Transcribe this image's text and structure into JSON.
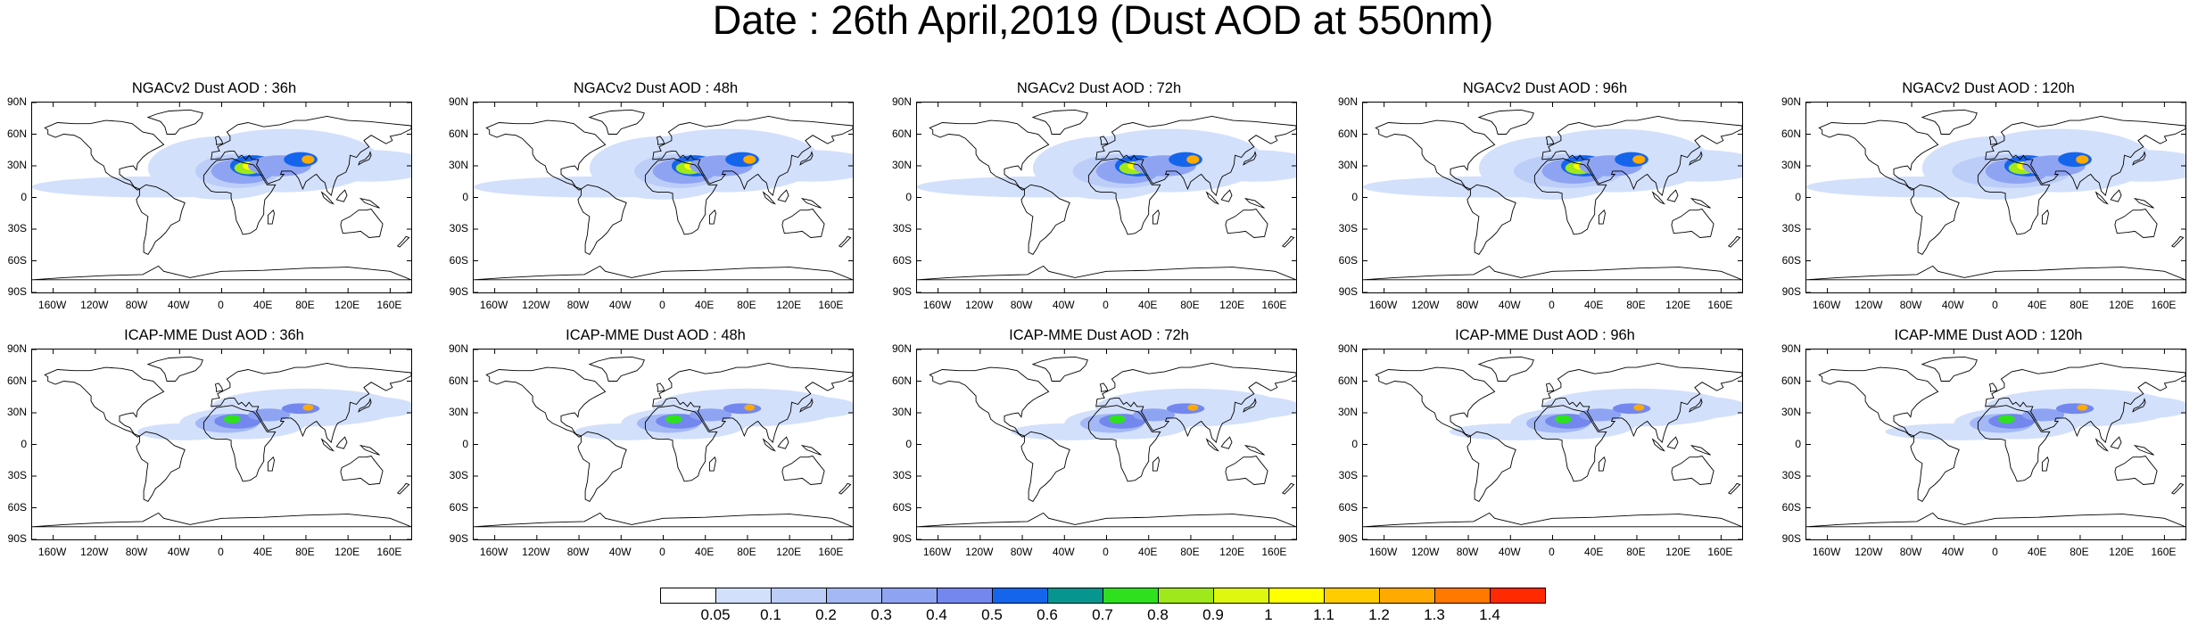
{
  "figure": {
    "title": "Date : 26th April,2019 (Dust AOD at 550nm)"
  },
  "lat_ticks": [
    "90N",
    "60N",
    "30N",
    "0",
    "30S",
    "60S",
    "90S"
  ],
  "lon_ticks": [
    "160W",
    "120W",
    "80W",
    "40W",
    "0",
    "40E",
    "80E",
    "120E",
    "160E"
  ],
  "lat_values": [
    90,
    60,
    30,
    0,
    -30,
    -60,
    -90
  ],
  "lon_values": [
    -160,
    -120,
    -80,
    -40,
    0,
    40,
    80,
    120,
    160
  ],
  "panels": [
    {
      "title": "NGACv2 Dust AOD : 36h",
      "model": "NGACv2",
      "lead_hours": 36
    },
    {
      "title": "NGACv2 Dust AOD : 48h",
      "model": "NGACv2",
      "lead_hours": 48
    },
    {
      "title": "NGACv2 Dust AOD : 72h",
      "model": "NGACv2",
      "lead_hours": 72
    },
    {
      "title": "NGACv2 Dust AOD : 96h",
      "model": "NGACv2",
      "lead_hours": 96
    },
    {
      "title": "NGACv2 Dust AOD : 120h",
      "model": "NGACv2",
      "lead_hours": 120
    },
    {
      "title": "ICAP-MME Dust AOD : 36h",
      "model": "ICAP-MME",
      "lead_hours": 36
    },
    {
      "title": "ICAP-MME Dust AOD : 48h",
      "model": "ICAP-MME",
      "lead_hours": 48
    },
    {
      "title": "ICAP-MME Dust AOD : 72h",
      "model": "ICAP-MME",
      "lead_hours": 72
    },
    {
      "title": "ICAP-MME Dust AOD : 96h",
      "model": "ICAP-MME",
      "lead_hours": 96
    },
    {
      "title": "ICAP-MME Dust AOD : 120h",
      "model": "ICAP-MME",
      "lead_hours": 120
    }
  ],
  "colorbar": {
    "labels": [
      "0.05",
      "0.1",
      "0.2",
      "0.3",
      "0.4",
      "0.5",
      "0.6",
      "0.7",
      "0.8",
      "0.9",
      "1",
      "1.1",
      "1.2",
      "1.3",
      "1.4"
    ],
    "colors": [
      "#ffffff",
      "#d3e0fb",
      "#bccdf8",
      "#a3b8f5",
      "#8ea4f3",
      "#7387ef",
      "#1565ec",
      "#07968f",
      "#2ee01e",
      "#9ee81b",
      "#dff60f",
      "#ffff00",
      "#ffcc00",
      "#ffaa00",
      "#ff7800",
      "#ff2a00"
    ]
  }
}
